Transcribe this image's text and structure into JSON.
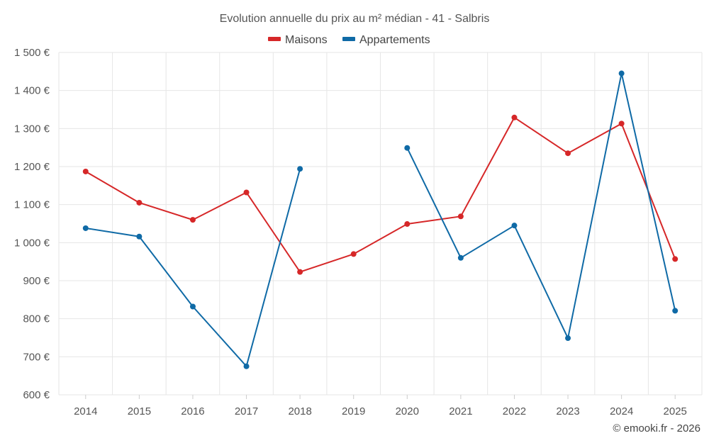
{
  "chart_data": {
    "type": "line",
    "title": "Evolution annuelle du prix au m² médian - 41 - Salbris",
    "categories": [
      "2014",
      "2015",
      "2016",
      "2017",
      "2018",
      "2019",
      "2020",
      "2021",
      "2022",
      "2023",
      "2024",
      "2025"
    ],
    "series": [
      {
        "name": "Maisons",
        "color": "#d62728",
        "values": [
          1187,
          1105,
          1060,
          1132,
          923,
          970,
          1049,
          1069,
          1329,
          1235,
          1313,
          957
        ]
      },
      {
        "name": "Appartements",
        "color": "#0f6aa6",
        "values": [
          1038,
          1016,
          832,
          675,
          1194,
          null,
          1249,
          960,
          1045,
          749,
          1445,
          821
        ]
      }
    ],
    "ylim": [
      600,
      1500
    ],
    "yticks": [
      600,
      700,
      800,
      900,
      1000,
      1100,
      1200,
      1300,
      1400,
      1500
    ],
    "ytick_labels": [
      "600 €",
      "700 €",
      "800 €",
      "900 €",
      "1 000 €",
      "1 100 €",
      "1 200 €",
      "1 300 €",
      "1 400 €",
      "1 500 €"
    ],
    "xlabel": "",
    "ylabel": "",
    "grid": true,
    "legend_position": "top-center"
  },
  "credit": "© emooki.fr - 2026"
}
